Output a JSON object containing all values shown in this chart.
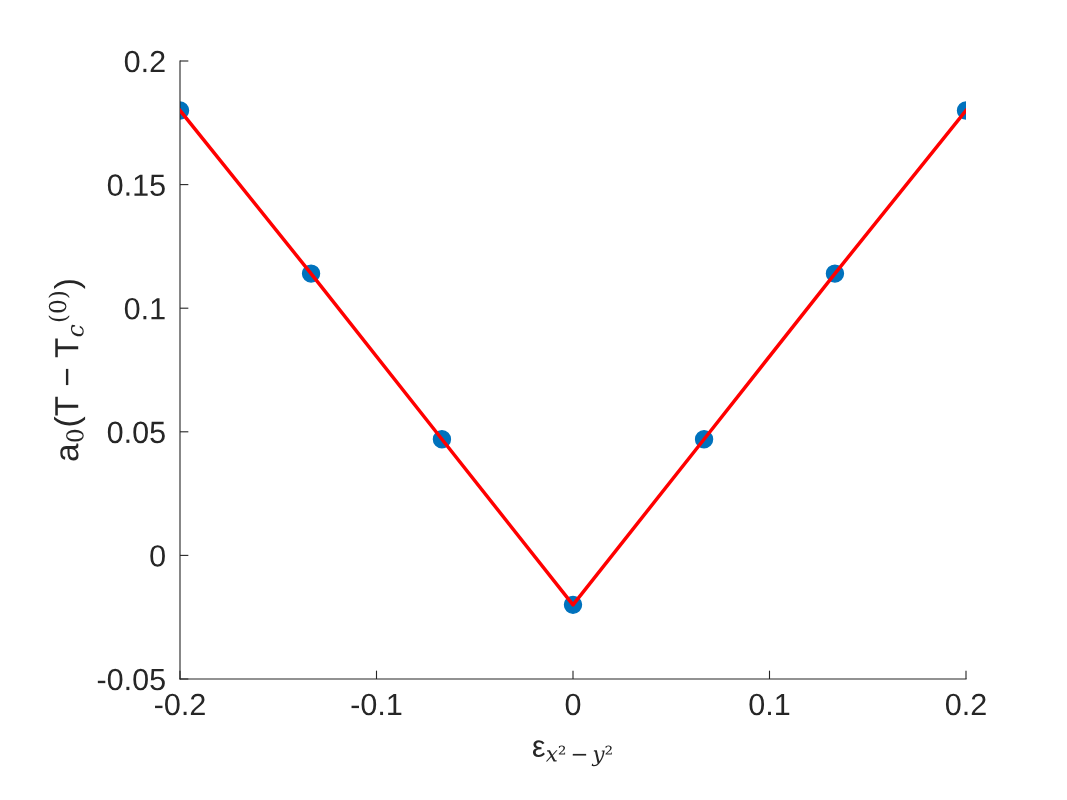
{
  "chart_data": {
    "type": "scatter",
    "xlabel": "ε$_{x²−y²}$",
    "ylabel": "a$_{0}$(T − T$_{c}$$^{(0)}$)",
    "x": [
      -0.2,
      -0.1333,
      -0.0667,
      0,
      0.0667,
      0.1333,
      0.2
    ],
    "series": [
      {
        "color": "#0072bd",
        "marker": "circle",
        "values": [
          0.18,
          0.114,
          0.047,
          -0.02,
          0.047,
          0.114,
          0.18
        ]
      },
      {
        "type": "line",
        "color": "#ff0000",
        "marker": "none",
        "line_style": "solid",
        "values": [
          0.18,
          0.114,
          0.047,
          -0.02,
          0.047,
          0.114,
          0.18
        ]
      }
    ],
    "xlim": [
      -0.2,
      0.2
    ],
    "xticks": [
      -0.2,
      -0.1,
      0,
      0.1,
      0.2
    ],
    "ylim": [
      -0.05,
      0.2
    ],
    "yticks": [
      -0.05,
      0,
      0.05,
      0.1,
      0.15,
      0.2
    ],
    "grid": false,
    "legend": false
  }
}
